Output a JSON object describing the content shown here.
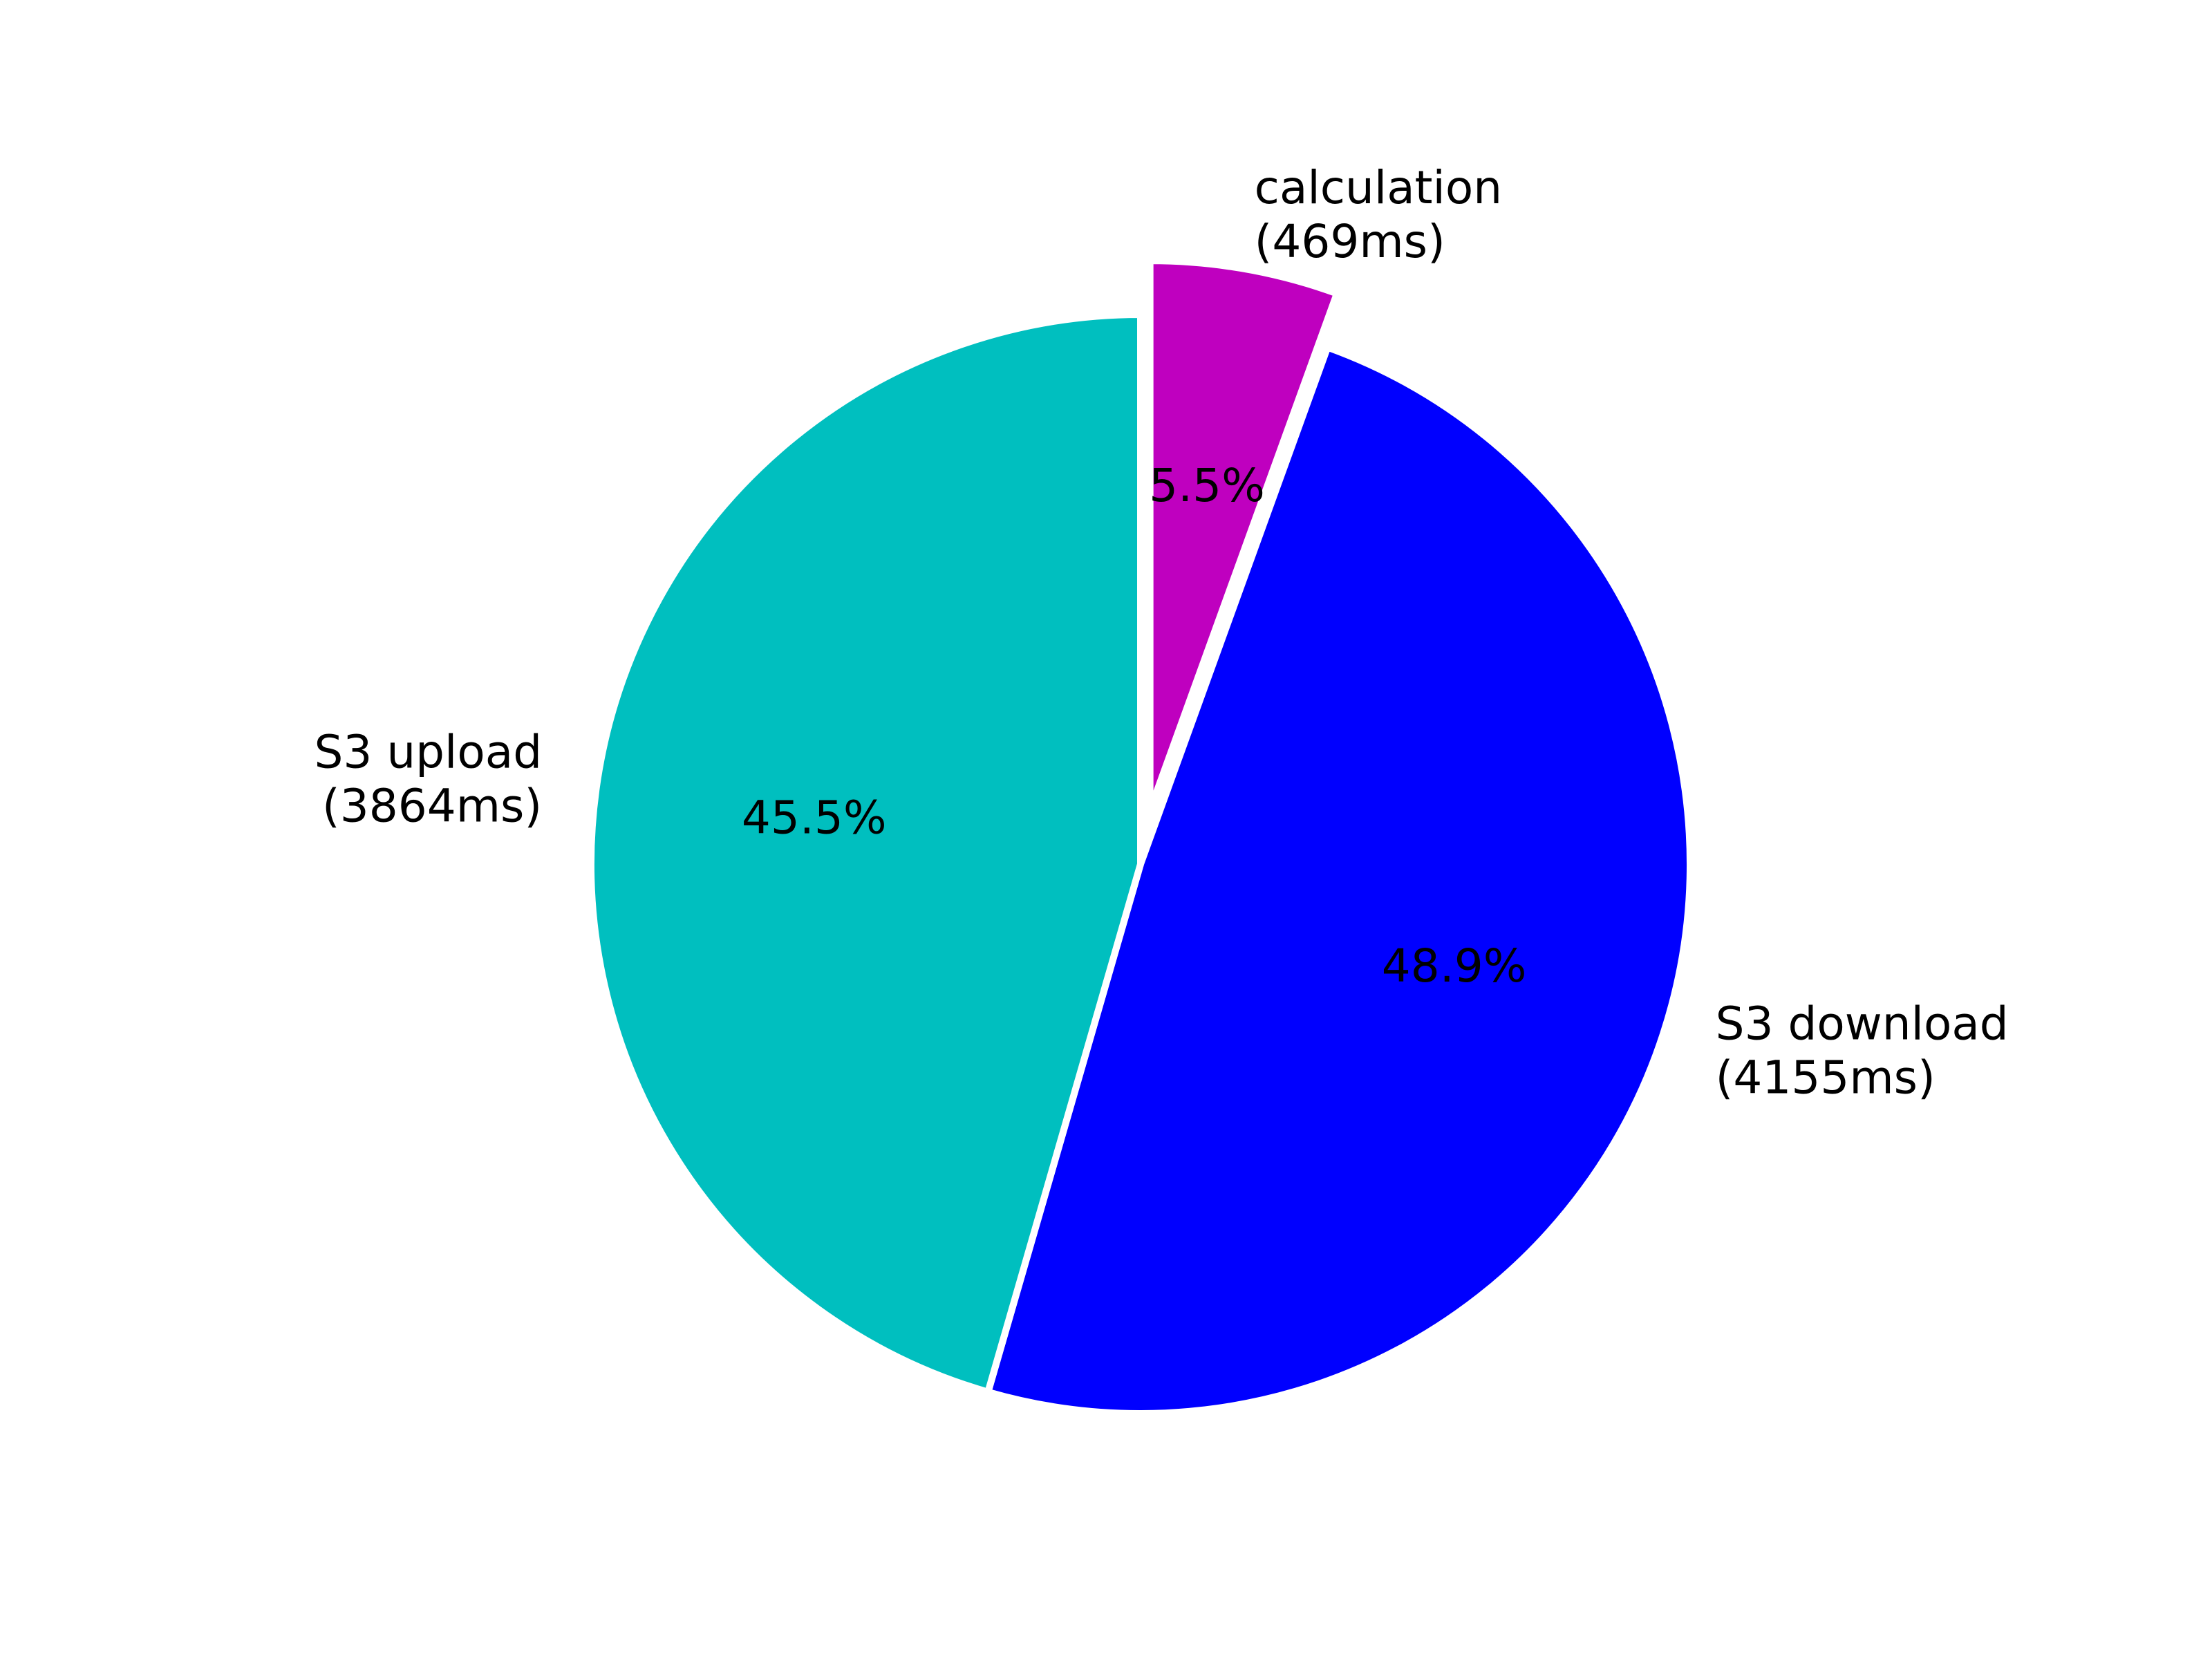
{
  "chart_data": {
    "type": "pie",
    "title": "",
    "start_angle_deg": 90,
    "direction": "clockwise",
    "edge_color": "#ffffff",
    "slices": [
      {
        "label_line1": "calculation",
        "label_line2": "(469ms)",
        "value": 469,
        "percent_label": "5.5%",
        "color": "#bf00bf",
        "exploded": true
      },
      {
        "label_line1": "S3 download",
        "label_line2": "(4155ms)",
        "value": 4155,
        "percent_label": "48.9%",
        "color": "#0000ff",
        "exploded": false
      },
      {
        "label_line1": "S3 upload",
        "label_line2": "(3864ms)",
        "value": 3864,
        "percent_label": "45.5%",
        "color": "#00bfbf",
        "exploded": false
      }
    ]
  }
}
